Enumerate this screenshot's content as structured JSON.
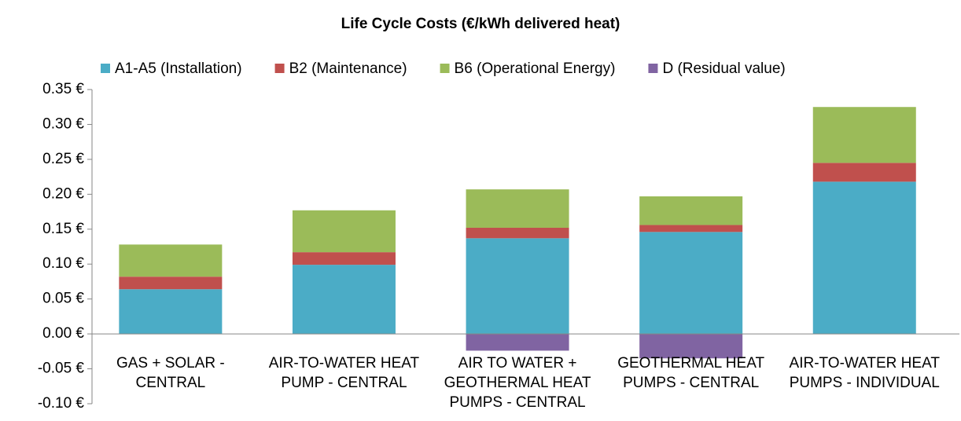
{
  "chart_data": {
    "type": "stacked_bar",
    "title": "Life Cycle Costs (€/kWh delivered heat)",
    "categories": [
      "GAS + SOLAR - CENTRAL",
      "AIR-TO-WATER HEAT PUMP - CENTRAL",
      "AIR TO WATER + GEOTHERMAL HEAT PUMPS - CENTRAL",
      "GEOTHERMAL HEAT PUMPS - CENTRAL",
      "AIR-TO-WATER HEAT PUMPS - INDIVIDUAL"
    ],
    "series": [
      {
        "name": "A1-A5 (Installation)",
        "color": "#4bacc6",
        "values": [
          0.064,
          0.099,
          0.137,
          0.146,
          0.218
        ]
      },
      {
        "name": "B2 (Maintenance)",
        "color": "#c0504d",
        "values": [
          0.018,
          0.018,
          0.015,
          0.01,
          0.027
        ]
      },
      {
        "name": "B6 (Operational Energy)",
        "color": "#9bbb59",
        "values": [
          0.046,
          0.06,
          0.055,
          0.041,
          0.08
        ]
      },
      {
        "name": "D (Residual value)",
        "color": "#8064a2",
        "values": [
          0,
          0,
          -0.024,
          -0.035,
          0
        ]
      }
    ],
    "ylim": [
      -0.1,
      0.35
    ],
    "yticks": [
      {
        "value": -0.1,
        "label": "-0.10 €"
      },
      {
        "value": -0.05,
        "label": "-0.05 €"
      },
      {
        "value": 0,
        "label": "0.00 €"
      },
      {
        "value": 0.05,
        "label": "0.05 €"
      },
      {
        "value": 0.1,
        "label": "0.10 €"
      },
      {
        "value": 0.15,
        "label": "0.15 €"
      },
      {
        "value": 0.2,
        "label": "0.20 €"
      },
      {
        "value": 0.25,
        "label": "0.25 €"
      },
      {
        "value": 0.3,
        "label": "0.30 €"
      },
      {
        "value": 0.35,
        "label": "0.35 €"
      }
    ],
    "legend": "top"
  }
}
